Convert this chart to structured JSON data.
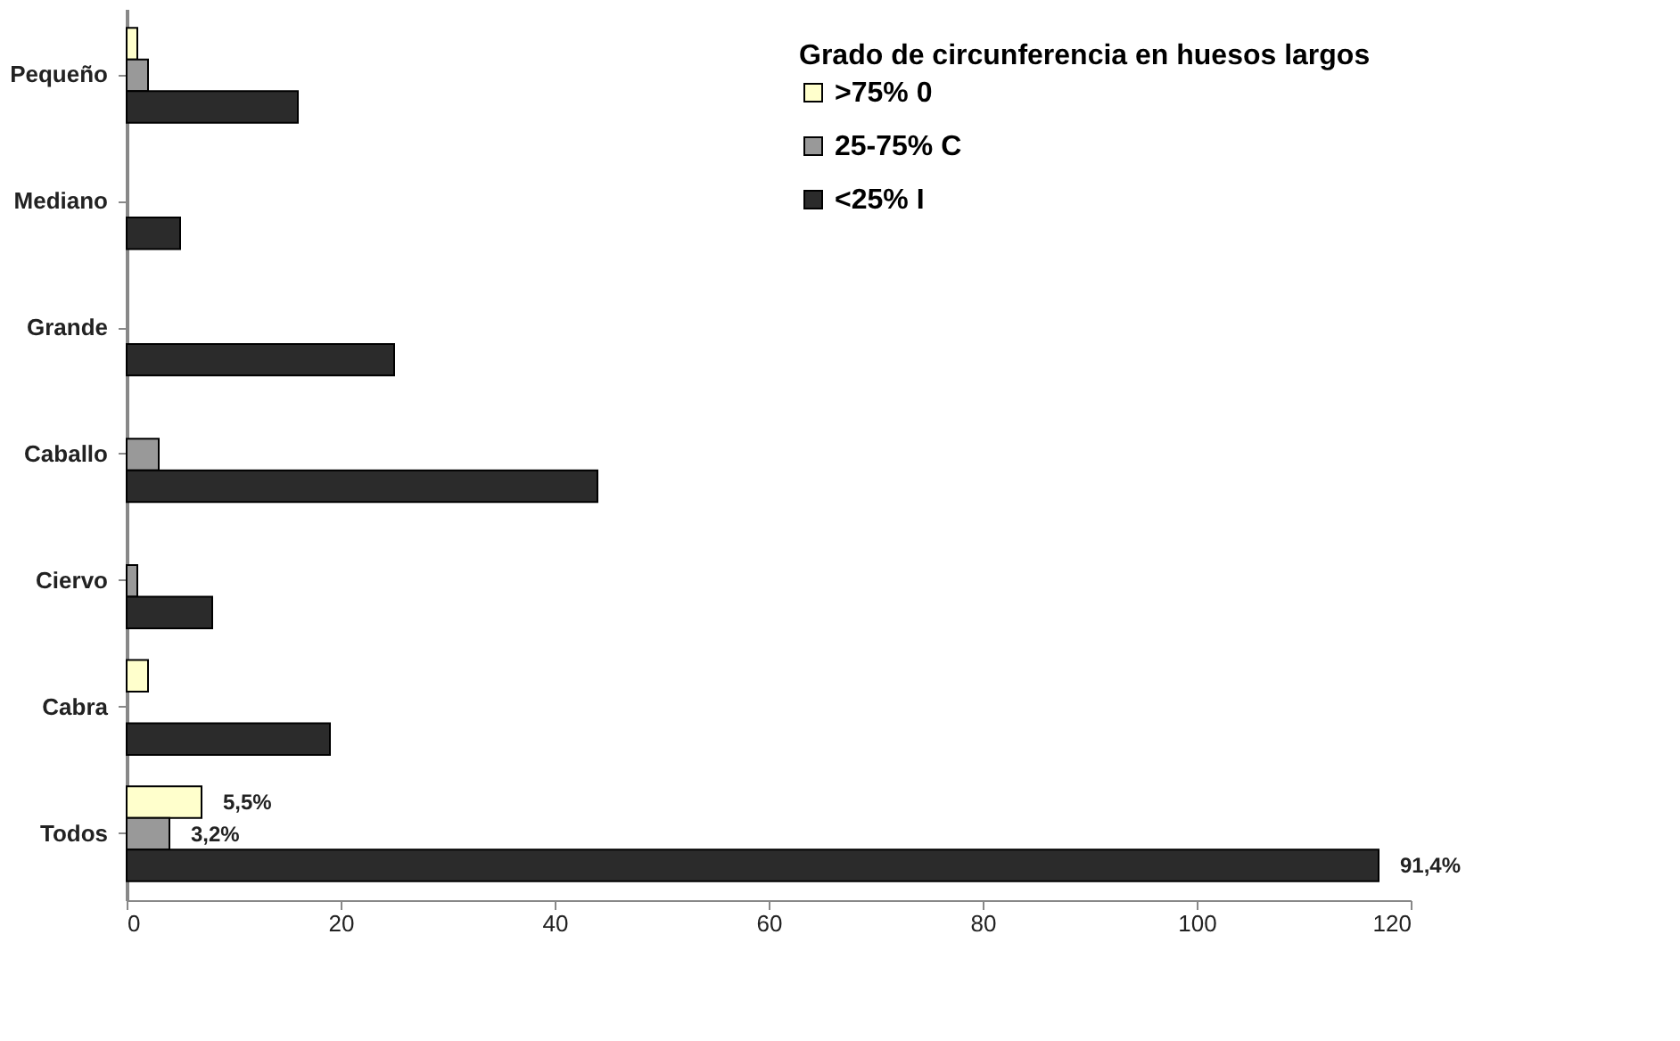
{
  "chart_data": {
    "type": "bar",
    "orientation": "horizontal",
    "categories": [
      "Pequeño",
      "Mediano",
      "Grande",
      "Caballo",
      "Ciervo",
      "Cabra",
      "Todos"
    ],
    "legend_title": "Grado de  circunferencia en huesos largos",
    "annotations": [
      "5,5%",
      "3,2%",
      "91,4%"
    ],
    "series": [
      {
        "name": ">75% 0",
        "color": "#ffffcc",
        "values": [
          1,
          null,
          null,
          null,
          null,
          2,
          7
        ]
      },
      {
        "name": "25-75% C",
        "color": "#999999",
        "values": [
          2,
          null,
          null,
          3,
          1,
          null,
          4
        ]
      },
      {
        "name": "<25% I",
        "color": "#2b2b2b",
        "values": [
          16,
          5,
          25,
          44,
          8,
          19,
          117
        ]
      }
    ],
    "xlim": [
      0,
      120
    ],
    "xticks": [
      0,
      20,
      40,
      60,
      80,
      100,
      120
    ],
    "grid": false,
    "legend": "top right"
  }
}
